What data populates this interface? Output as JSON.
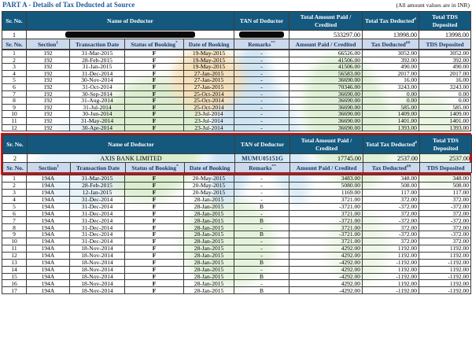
{
  "title": "PART A - Details of Tax Deducted at Source",
  "note": "(All amount values are in INR)",
  "colors": {
    "header_bg": "#14587e",
    "subheader_bg": "#ccd9ec",
    "highlight_border": "#ee0000",
    "status_f": "#2db694",
    "title_blue": "#1f5c99"
  },
  "summary_columns": [
    {
      "label": "Sr. No.",
      "sup": ""
    },
    {
      "label": "Name of Deductor",
      "sup": ""
    },
    {
      "label": "TAN of Deductor",
      "sup": ""
    },
    {
      "label": "Total Amount Paid / Credited",
      "sup": ""
    },
    {
      "label": "Total Tax Deducted",
      "sup": "#"
    },
    {
      "label": "Total TDS Deposited",
      "sup": ""
    }
  ],
  "detail_columns": [
    {
      "label": "Sr. No.",
      "sup": ""
    },
    {
      "label": "Section",
      "sup": "1"
    },
    {
      "label": "Transaction Date",
      "sup": ""
    },
    {
      "label": "Status of Booking",
      "sup": "*"
    },
    {
      "label": "Date of Booking",
      "sup": ""
    },
    {
      "label": "Remarks",
      "sup": "**"
    },
    {
      "label": "Amount Paid / Credited",
      "sup": ""
    },
    {
      "label": "Tax Deducted",
      "sup": "##"
    },
    {
      "label": "TDS Deposited",
      "sup": ""
    }
  ],
  "sections": [
    {
      "sr_no": "1",
      "name": "",
      "name_redacted": true,
      "tan": "",
      "tan_redacted": true,
      "total_amount": "533297.00",
      "total_tax": "13998.00",
      "total_tds": "13998.00",
      "highlighted": false,
      "rows": [
        [
          "1",
          "192",
          "31-Mar-2015",
          "F",
          "19-May-2015",
          "-",
          "66526.00",
          "3052.00",
          "3052.00"
        ],
        [
          "2",
          "192",
          "28-Feb-2015",
          "F",
          "19-May-2015",
          "-",
          "41506.00",
          "392.00",
          "392.00"
        ],
        [
          "3",
          "192",
          "31-Jan-2015",
          "F",
          "19-May-2015",
          "-",
          "41506.00",
          "490.00",
          "490.00"
        ],
        [
          "4",
          "192",
          "31-Dec-2014",
          "F",
          "27-Jan-2015",
          "-",
          "56583.00",
          "2017.00",
          "2017.00"
        ],
        [
          "5",
          "192",
          "30-Nov-2014",
          "F",
          "27-Jan-2015",
          "-",
          "36690.00",
          "16.00",
          "16.00"
        ],
        [
          "6",
          "192",
          "31-Oct-2014",
          "F",
          "27-Jan-2015",
          "-",
          "70346.00",
          "3243.00",
          "3243.00"
        ],
        [
          "7",
          "192",
          "30-Sep-2014",
          "F",
          "25-Oct-2014",
          "-",
          "36690.00",
          "0.00",
          "0.00"
        ],
        [
          "8",
          "192",
          "31-Aug-2014",
          "F",
          "25-Oct-2014",
          "-",
          "36690.00",
          "0.00",
          "0.00"
        ],
        [
          "9",
          "192",
          "31-Jul-2014",
          "F",
          "25-Oct-2014",
          "-",
          "36690.00",
          "585.00",
          "585.00"
        ],
        [
          "10",
          "192",
          "30-Jun-2014",
          "F",
          "23-Jul-2014",
          "-",
          "36690.00",
          "1409.00",
          "1409.00"
        ],
        [
          "11",
          "192",
          "31-May-2014",
          "F",
          "23-Jul-2014",
          "-",
          "36690.00",
          "1401.00",
          "1401.00"
        ],
        [
          "12",
          "192",
          "30-Apr-2014",
          "F",
          "23-Jul-2014",
          "-",
          "36690.00",
          "1393.00",
          "1393.00"
        ]
      ]
    },
    {
      "sr_no": "2",
      "name": "AXIS BANK LIMITED",
      "name_redacted": false,
      "tan": "MUMU05151G",
      "tan_redacted": false,
      "total_amount": "17745.00",
      "total_tax": "2537.00",
      "total_tds": "2537.00",
      "highlighted": true,
      "rows": [
        [
          "1",
          "194A",
          "31-Mar-2015",
          "F",
          "20-May-2015",
          "-",
          "3483.00",
          "348.00",
          "348.00"
        ],
        [
          "2",
          "194A",
          "28-Feb-2015",
          "F",
          "20-May-2015",
          "-",
          "5080.00",
          "508.00",
          "508.00"
        ],
        [
          "3",
          "194A",
          "12-Jan-2015",
          "F",
          "20-May-2015",
          "-",
          "1169.00",
          "117.00",
          "117.00"
        ],
        [
          "4",
          "194A",
          "31-Dec-2014",
          "F",
          "28-Jan-2015",
          "-",
          "3721.00",
          "372.00",
          "372.00"
        ],
        [
          "5",
          "194A",
          "31-Dec-2014",
          "F",
          "28-Jan-2015",
          "B",
          "-3721.00",
          "-372.00",
          "-372.00"
        ],
        [
          "6",
          "194A",
          "31-Dec-2014",
          "F",
          "28-Jan-2015",
          "-",
          "3721.00",
          "372.00",
          "372.00"
        ],
        [
          "7",
          "194A",
          "31-Dec-2014",
          "F",
          "28-Jan-2015",
          "B",
          "-3721.00",
          "-372.00",
          "-372.00"
        ],
        [
          "8",
          "194A",
          "31-Dec-2014",
          "F",
          "28-Jan-2015",
          "-",
          "3721.00",
          "372.00",
          "372.00"
        ],
        [
          "9",
          "194A",
          "31-Dec-2014",
          "F",
          "28-Jan-2015",
          "B",
          "-3721.00",
          "-372.00",
          "-372.00"
        ],
        [
          "10",
          "194A",
          "31-Dec-2014",
          "F",
          "28-Jan-2015",
          "-",
          "3721.00",
          "372.00",
          "372.00"
        ],
        [
          "11",
          "194A",
          "18-Nov-2014",
          "F",
          "28-Jan-2015",
          "-",
          "4292.00",
          "1192.00",
          "1192.00"
        ],
        [
          "12",
          "194A",
          "18-Nov-2014",
          "F",
          "28-Jan-2015",
          "-",
          "4292.00",
          "1192.00",
          "1192.00"
        ],
        [
          "13",
          "194A",
          "18-Nov-2014",
          "F",
          "28-Jan-2015",
          "B",
          "-4292.00",
          "-1192.00",
          "-1192.00"
        ],
        [
          "14",
          "194A",
          "18-Nov-2014",
          "F",
          "28-Jan-2015",
          "-",
          "4292.00",
          "1192.00",
          "1192.00"
        ],
        [
          "15",
          "194A",
          "18-Nov-2014",
          "F",
          "28-Jan-2015",
          "B",
          "-4292.00",
          "-1192.00",
          "-1192.00"
        ],
        [
          "16",
          "194A",
          "18-Nov-2014",
          "F",
          "28-Jan-2015",
          "-",
          "4292.00",
          "1192.00",
          "1192.00"
        ],
        [
          "17",
          "194A",
          "18-Nov-2014",
          "F",
          "28-Jan-2015",
          "B",
          "-4292.00",
          "-1192.00",
          "-1192.00"
        ]
      ]
    }
  ]
}
